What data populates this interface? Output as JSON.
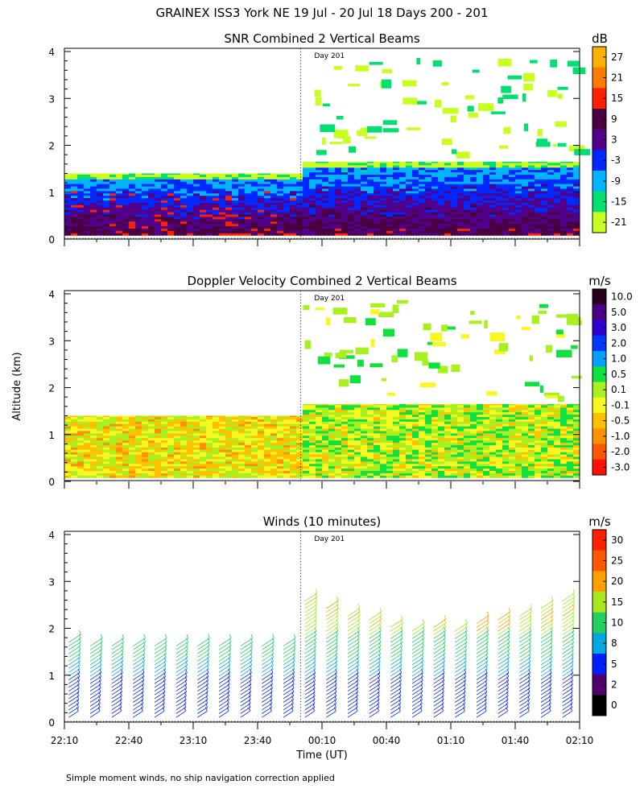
{
  "figure": {
    "title": "GRAINEX ISS3 York NE  19 Jul - 20 Jul 18 Days 200 - 201",
    "ylabel": "Altitude (km)",
    "xlabel": "Time (UT)",
    "footnote": "Simple moment winds, no ship navigation correction applied",
    "day_marker_label": "Day 201"
  },
  "chart_data": [
    {
      "type": "heatmap",
      "title": "SNR Combined 2 Vertical Beams",
      "colorbar_unit": "dB",
      "colorbar_labels": [
        "27",
        "21",
        "15",
        "9",
        "3",
        "-3",
        "-9",
        "-15",
        "-21"
      ],
      "colorbar_colors": [
        "#ffb000",
        "#ff7a00",
        "#ff2000",
        "#4a0040",
        "#50008a",
        "#0028ff",
        "#00b4ff",
        "#00e070",
        "#c8ff20"
      ],
      "x_ticks": [
        "22:10",
        "22:40",
        "23:10",
        "23:40",
        "00:10",
        "00:40",
        "01:10",
        "01:40",
        "02:10"
      ],
      "y_ticks": [
        "0",
        "1",
        "2",
        "3",
        "4"
      ],
      "xlim_minutes": [
        0,
        240
      ],
      "ylim": [
        0,
        4
      ],
      "day_marker_minutes": 110,
      "coverage_top_km": [
        [
          0,
          1.4
        ],
        [
          110,
          1.4
        ],
        [
          110,
          1.65
        ],
        [
          240,
          1.65
        ]
      ]
    },
    {
      "type": "heatmap",
      "title": "Doppler Velocity Combined 2 Vertical Beams",
      "colorbar_unit": "m/s",
      "colorbar_labels": [
        "10.0",
        "5.0",
        "3.0",
        "2.0",
        "1.0",
        "0.5",
        "0.1",
        "-0.1",
        "-0.5",
        "-1.0",
        "-2.0",
        "-3.0"
      ],
      "colorbar_colors": [
        "#2a0020",
        "#4a0080",
        "#3000d0",
        "#0038ff",
        "#00a0ff",
        "#10e040",
        "#a8f020",
        "#f8f820",
        "#ffc000",
        "#ff9000",
        "#ff5800",
        "#ff1000"
      ],
      "x_ticks": [
        "22:10",
        "22:40",
        "23:10",
        "23:40",
        "00:10",
        "00:40",
        "01:10",
        "01:40",
        "02:10"
      ],
      "y_ticks": [
        "0",
        "1",
        "2",
        "3",
        "4"
      ],
      "xlim_minutes": [
        0,
        240
      ],
      "ylim": [
        0,
        4
      ],
      "day_marker_minutes": 110
    },
    {
      "type": "wind_barbs",
      "title": "Winds (10 minutes)",
      "colorbar_unit": "m/s",
      "colorbar_labels": [
        "30",
        "25",
        "20",
        "15",
        "10",
        "8",
        "5",
        "2",
        "0"
      ],
      "colorbar_colors": [
        "#ff2000",
        "#ff5800",
        "#ffa000",
        "#a8e820",
        "#20d060",
        "#00a8e0",
        "#0020ff",
        "#50006a",
        "#000000"
      ],
      "x_ticks": [
        "22:10",
        "22:40",
        "23:10",
        "23:40",
        "00:10",
        "00:40",
        "01:10",
        "01:40",
        "02:10"
      ],
      "y_ticks": [
        "0",
        "1",
        "2",
        "3",
        "4"
      ],
      "xlim_minutes": [
        0,
        240
      ],
      "ylim": [
        0,
        4
      ],
      "day_marker_minutes": 110,
      "profile_times_minutes": [
        2,
        12,
        22,
        32,
        42,
        52,
        62,
        72,
        82,
        92,
        102,
        112,
        122,
        132,
        142,
        152,
        162,
        172,
        182,
        192,
        202,
        212,
        222,
        232
      ],
      "profile_top_km": [
        1.75,
        1.65,
        1.7,
        1.65,
        1.7,
        1.7,
        1.7,
        1.7,
        1.65,
        1.7,
        1.7,
        2.65,
        2.5,
        2.3,
        2.2,
        2.1,
        2.0,
        2.05,
        2.0,
        2.15,
        2.2,
        2.3,
        2.5,
        2.6
      ]
    }
  ]
}
